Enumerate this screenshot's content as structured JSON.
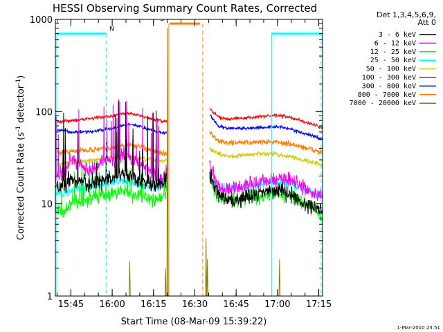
{
  "chart_data": {
    "type": "line",
    "title": "HESSI Observing Summary Count Rates, Corrected",
    "xlabel": "Start Time (08-Mar-09 15:39:22)",
    "ylabel_main": "Corrected Count Rate (s",
    "ylabel_sup1": "-1",
    "ylabel_mid": " detector",
    "ylabel_sup2": "-1",
    "ylabel_end": ")",
    "yscale": "log",
    "ylim": [
      1,
      1000
    ],
    "xlim_minutes": [
      0,
      97
    ],
    "x_ticks": [
      {
        "label": "15:45",
        "min": 5.63
      },
      {
        "label": "16:00",
        "min": 20.63
      },
      {
        "label": "16:15",
        "min": 35.63
      },
      {
        "label": "16:30",
        "min": 50.63
      },
      {
        "label": "16:45",
        "min": 65.63
      },
      {
        "label": "17:00",
        "min": 80.63
      },
      {
        "label": "17:15",
        "min": 95.63
      }
    ],
    "y_ticks": [
      {
        "label": "1",
        "value": 1
      },
      {
        "label": "10",
        "value": 10
      },
      {
        "label": "100",
        "value": 100
      },
      {
        "label": "1000",
        "value": 1000
      }
    ],
    "legend_header": [
      "Det 1,3,4,5,6,9,",
      "Att 0"
    ],
    "series": [
      {
        "name": "3 - 6 keV",
        "color": "#000000",
        "x": [
          0,
          3,
          6,
          9,
          12,
          15,
          18,
          21,
          24,
          27,
          30,
          33,
          36,
          39,
          40.5,
          56,
          57,
          59,
          62,
          66,
          70,
          74,
          78,
          82,
          86,
          90,
          94,
          97
        ],
        "y": [
          15,
          16,
          18,
          17,
          16,
          17,
          18,
          19,
          22,
          20,
          18,
          17,
          16,
          17,
          20,
          20,
          18,
          13,
          11,
          11,
          12,
          13,
          14,
          14,
          12,
          10,
          9,
          8
        ],
        "noise": 0.14,
        "spikes": true,
        "spike_scale": 60,
        "segments": [
          [
            0,
            40.5
          ],
          [
            56,
            97
          ]
        ]
      },
      {
        "name": "6 - 12 keV",
        "color": "#ff00ff",
        "x": [
          0,
          3,
          6,
          9,
          12,
          15,
          18,
          21,
          24,
          27,
          30,
          33,
          36,
          39,
          40.5,
          56,
          57,
          59,
          62,
          66,
          70,
          74,
          78,
          82,
          86,
          90,
          94,
          97
        ],
        "y": [
          20,
          22,
          30,
          28,
          22,
          25,
          30,
          28,
          35,
          32,
          28,
          24,
          20,
          18,
          22,
          28,
          22,
          16,
          14,
          15,
          16,
          17,
          18,
          19,
          18,
          15,
          13,
          12
        ],
        "noise": 0.13,
        "spikes": true,
        "spike_scale": 40,
        "segments": [
          [
            0,
            40.5
          ],
          [
            56,
            97
          ]
        ]
      },
      {
        "name": "12 - 25 keV",
        "color": "#00ff00",
        "x": [
          0,
          3,
          6,
          9,
          12,
          15,
          18,
          21,
          24,
          27,
          30,
          33,
          36,
          39,
          40.5,
          56,
          57,
          59,
          62,
          66,
          70,
          74,
          78,
          82,
          86,
          90,
          94,
          97
        ],
        "y": [
          9,
          8,
          10,
          10,
          11,
          12,
          12,
          13,
          14,
          13,
          12,
          12,
          11,
          12,
          14,
          20,
          16,
          12,
          11,
          11,
          12,
          12,
          13,
          13,
          12,
          10,
          9,
          7
        ],
        "noise": 0.12,
        "spikes": true,
        "spike_scale": 18,
        "segments": [
          [
            0,
            40.5
          ],
          [
            56,
            97
          ]
        ]
      },
      {
        "name": "25 - 50 keV",
        "color": "#00ffff",
        "x": [
          0,
          3,
          6,
          9,
          12,
          15,
          18,
          21,
          24,
          27,
          30,
          33,
          36,
          39,
          40.5,
          56,
          57,
          59,
          62,
          66,
          70,
          74,
          78,
          82,
          86,
          90,
          94,
          97
        ],
        "y": [
          13,
          13,
          14,
          15,
          15,
          16,
          16,
          17,
          18,
          17,
          16,
          16,
          15,
          16,
          17,
          20,
          17,
          15,
          15,
          15,
          15,
          16,
          17,
          17,
          16,
          14,
          13,
          12
        ],
        "noise": 0.08,
        "spikes": false,
        "segments": [
          [
            0,
            40.5
          ],
          [
            56,
            97
          ]
        ]
      },
      {
        "name": "50 - 100 keV",
        "color": "#cccc00",
        "x": [
          0,
          3,
          6,
          9,
          12,
          15,
          18,
          21,
          24,
          27,
          30,
          33,
          36,
          39,
          40.5,
          56,
          57,
          59,
          62,
          66,
          70,
          74,
          78,
          82,
          86,
          90,
          94,
          97
        ],
        "y": [
          27,
          27,
          28,
          29,
          29,
          30,
          31,
          32,
          33,
          32,
          31,
          30,
          30,
          29,
          30,
          40,
          38,
          35,
          33,
          33,
          34,
          35,
          35,
          34,
          32,
          30,
          28,
          26
        ],
        "noise": 0.04,
        "spikes": false,
        "segments": [
          [
            0,
            40.5
          ],
          [
            56,
            97
          ]
        ]
      },
      {
        "name": "100 - 300 keV",
        "color": "#ff0000",
        "x": [
          0,
          3,
          6,
          9,
          12,
          15,
          18,
          21,
          24,
          27,
          30,
          33,
          36,
          39,
          40.5,
          56,
          57,
          59,
          62,
          66,
          70,
          74,
          78,
          82,
          86,
          90,
          94,
          97
        ],
        "y": [
          77,
          78,
          80,
          82,
          84,
          86,
          88,
          90,
          94,
          96,
          92,
          86,
          82,
          78,
          80,
          110,
          100,
          88,
          84,
          84,
          86,
          88,
          90,
          90,
          85,
          78,
          72,
          66
        ],
        "noise": 0.03,
        "spikes": false,
        "segments": [
          [
            0,
            40.5
          ],
          [
            56,
            97
          ]
        ]
      },
      {
        "name": "300 - 800 keV",
        "color": "#0000ff",
        "x": [
          0,
          3,
          6,
          9,
          12,
          15,
          18,
          21,
          24,
          27,
          30,
          33,
          36,
          39,
          40.5,
          56,
          57,
          59,
          62,
          66,
          70,
          74,
          78,
          82,
          86,
          90,
          94,
          97
        ],
        "y": [
          63,
          62,
          60,
          60,
          60,
          62,
          64,
          66,
          70,
          72,
          70,
          66,
          62,
          58,
          60,
          95,
          85,
          70,
          66,
          66,
          66,
          67,
          68,
          68,
          64,
          58,
          54,
          50
        ],
        "noise": 0.03,
        "spikes": false,
        "segments": [
          [
            0,
            40.5
          ],
          [
            56,
            97
          ]
        ]
      },
      {
        "name": "800 - 7000 keV",
        "color": "#ff8000",
        "x": [
          0,
          3,
          6,
          9,
          12,
          15,
          18,
          21,
          24,
          27,
          30,
          33,
          36,
          39,
          40.5,
          56,
          57,
          59,
          62,
          66,
          70,
          74,
          78,
          82,
          86,
          90,
          94,
          97
        ],
        "y": [
          36,
          36,
          37,
          38,
          38,
          39,
          40,
          41,
          43,
          44,
          42,
          39,
          37,
          35,
          36,
          60,
          56,
          48,
          46,
          46,
          46,
          47,
          47,
          46,
          44,
          41,
          38,
          36
        ],
        "noise": 0.05,
        "spikes": false,
        "segments": [
          [
            0,
            40.5
          ],
          [
            56,
            97
          ]
        ]
      },
      {
        "name": "7000 - 20000 keV",
        "color": "#808000",
        "x": [
          0,
          97
        ],
        "y": [
          1,
          1
        ],
        "noise": 0,
        "spikes": false,
        "segments": [],
        "bursts": [
          [
            27,
            2.4
          ],
          [
            40,
            2.0
          ],
          [
            40.7,
            800
          ],
          [
            54.7,
            4.2
          ],
          [
            55.2,
            2.5
          ],
          [
            81.4,
            2.5
          ]
        ]
      }
    ],
    "flags": [
      {
        "label": "N",
        "color": "#00ffff",
        "value": 700,
        "bars": [
          [
            0.5,
            18.5
          ],
          [
            78.5,
            96.5
          ]
        ],
        "vlines_dashed": [
          18.5,
          96.5
        ],
        "vlines_solid": [
          0.5,
          78.5
        ],
        "label_min": 20.5
      },
      {
        "label": "S",
        "color": "#ff8000",
        "value": 900,
        "bars": [
          [
            41.5,
            52.5
          ]
        ],
        "vlines_dashed": [
          53.5
        ],
        "vlines_solid": [
          41.2
        ],
        "label_min": 38.8
      }
    ],
    "footer": "1-Mar-2010 23:51"
  }
}
